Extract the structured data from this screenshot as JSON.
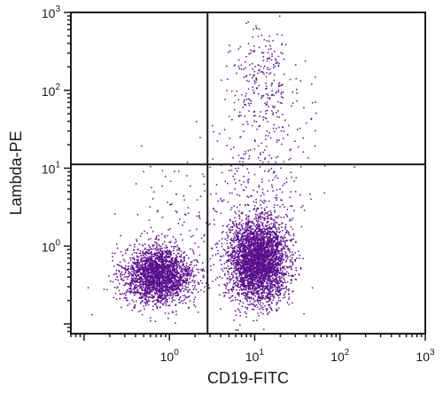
{
  "chart_data": {
    "type": "scatter",
    "title": "",
    "xlabel": "CD19-FITC",
    "ylabel": "Lambda-PE",
    "x_scale": "log",
    "y_scale": "log",
    "xlim": [
      0.07,
      1000
    ],
    "ylim": [
      0.075,
      1000
    ],
    "grid": false,
    "point_color": "#5a0f8c",
    "x_tick_labels": [
      {
        "value": 1,
        "base": "10",
        "exp": "0"
      },
      {
        "value": 10,
        "base": "10",
        "exp": "1"
      },
      {
        "value": 100,
        "base": "10",
        "exp": "2"
      },
      {
        "value": 1000,
        "base": "10",
        "exp": "3"
      }
    ],
    "y_tick_labels": [
      {
        "value": 1,
        "base": "10",
        "exp": "0"
      },
      {
        "value": 10,
        "base": "10",
        "exp": "1"
      },
      {
        "value": 100,
        "base": "10",
        "exp": "2"
      },
      {
        "value": 1000,
        "base": "10",
        "exp": "3"
      }
    ],
    "quadrant_gates": {
      "x": 2.8,
      "y": 11.2
    },
    "populations": [
      {
        "center": [
          0.75,
          0.42
        ],
        "spread_decades": [
          0.2,
          0.18
        ],
        "count": 2400
      },
      {
        "center": [
          11,
          0.65
        ],
        "spread_decades": [
          0.17,
          0.26
        ],
        "count": 3600
      },
      {
        "center": [
          13,
          150
        ],
        "spread_decades": [
          0.2,
          0.3
        ],
        "count": 200
      },
      {
        "center": [
          12,
          10
        ],
        "spread_decades": [
          0.3,
          0.6
        ],
        "count": 320
      },
      {
        "center": [
          2.0,
          1.5
        ],
        "spread_decades": [
          0.4,
          0.5
        ],
        "count": 160
      }
    ]
  }
}
